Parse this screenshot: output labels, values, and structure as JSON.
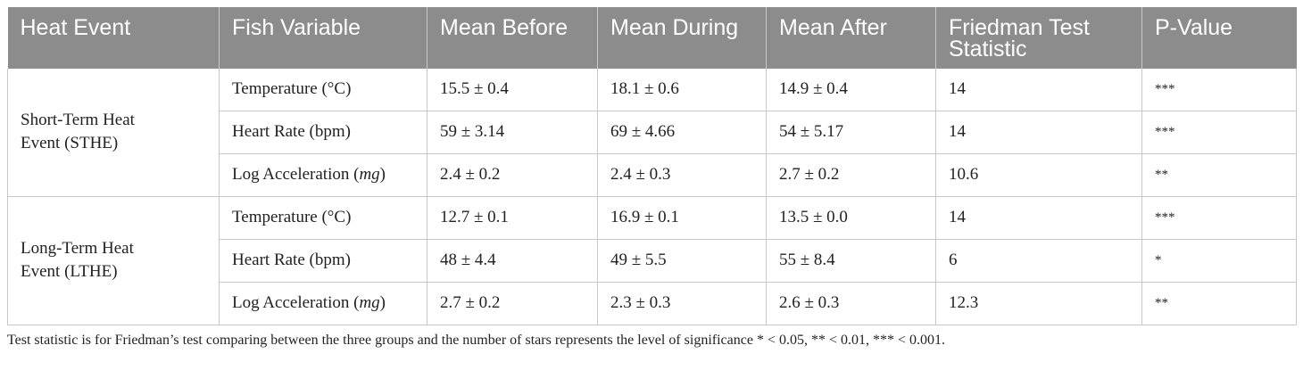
{
  "table": {
    "headers": [
      "Heat Event",
      "Fish Variable",
      "Mean Before",
      "Mean During",
      "Mean After",
      "Friedman Test Statistic",
      "P-Value"
    ],
    "groups": [
      {
        "event_line1": "Short-Term Heat",
        "event_line2": "Event (STHE)",
        "rows": [
          {
            "variable": "Temperature (°C)",
            "variable_unit": "",
            "before": "15.5 ± 0.4",
            "during": "18.1 ± 0.6",
            "after": "14.9 ± 0.4",
            "statistic": "14",
            "p_value": "***"
          },
          {
            "variable": "Heart Rate (bpm)",
            "variable_unit": "",
            "before": "59 ± 3.14",
            "during": "69 ± 4.66",
            "after": "54 ± 5.17",
            "statistic": "14",
            "p_value": "***"
          },
          {
            "variable": "Log Acceleration (",
            "variable_unit": "mg",
            "before": "2.4 ± 0.2",
            "during": "2.4 ± 0.3",
            "after": "2.7 ± 0.2",
            "statistic": "10.6",
            "p_value": "**"
          }
        ]
      },
      {
        "event_line1": "Long-Term Heat",
        "event_line2": "Event (LTHE)",
        "rows": [
          {
            "variable": "Temperature (°C)",
            "variable_unit": "",
            "before": "12.7 ± 0.1",
            "during": "16.9 ± 0.1",
            "after": "13.5 ± 0.0",
            "statistic": "14",
            "p_value": "***"
          },
          {
            "variable": "Heart Rate (bpm)",
            "variable_unit": "",
            "before": "48 ± 4.4",
            "during": "49 ± 5.5",
            "after": "55 ± 8.4",
            "statistic": "6",
            "p_value": "*"
          },
          {
            "variable": "Log Acceleration (",
            "variable_unit": "mg",
            "before": "2.7 ± 0.2",
            "during": "2.3 ± 0.3",
            "after": "2.6 ± 0.3",
            "statistic": "12.3",
            "p_value": "**"
          }
        ]
      }
    ]
  },
  "footnote": "Test statistic is for Friedman’s test comparing between the three groups and the number of stars represents the level of significance * < 0.05, ** < 0.01, *** < 0.001."
}
